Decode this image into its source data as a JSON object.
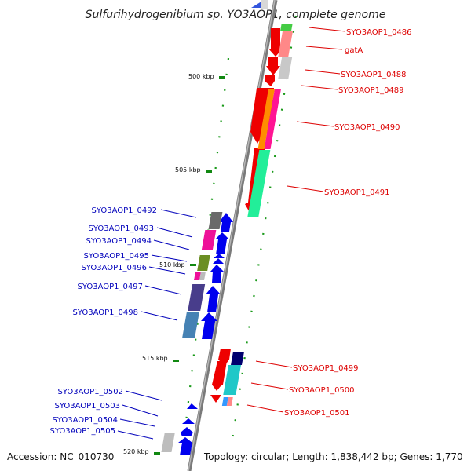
{
  "title": "Sulfurihydrogenibium sp. YO3AOP1, complete genome",
  "footer": {
    "accession": "Accession: NC_010730",
    "topology": "Topology: circular; Length: 1,838,442 bp; Genes: 1,770"
  },
  "scale_ticks": [
    "500 kbp",
    "505 kbp",
    "510 kbp",
    "515 kbp",
    "520 kbp"
  ],
  "colors": {
    "backbone": "#808080",
    "forward_label": "#dd0000",
    "reverse_label": "#0000bb",
    "tick": "#118811",
    "red_gene": "#ee0000",
    "blue_gene": "#0000ee"
  },
  "genes_forward": [
    {
      "label": "SYO3AOP1_0486"
    },
    {
      "label": "gatA"
    },
    {
      "label": "SYO3AOP1_0488"
    },
    {
      "label": "SYO3AOP1_0489"
    },
    {
      "label": "SYO3AOP1_0490"
    },
    {
      "label": "SYO3AOP1_0491"
    },
    {
      "label": "SYO3AOP1_0499"
    },
    {
      "label": "SYO3AOP1_0500"
    },
    {
      "label": "SYO3AOP1_0501"
    }
  ],
  "genes_reverse": [
    {
      "label": "SYO3AOP1_0492"
    },
    {
      "label": "SYO3AOP1_0493"
    },
    {
      "label": "SYO3AOP1_0494"
    },
    {
      "label": "SYO3AOP1_0495"
    },
    {
      "label": "SYO3AOP1_0496"
    },
    {
      "label": "SYO3AOP1_0497"
    },
    {
      "label": "SYO3AOP1_0498"
    },
    {
      "label": "SYO3AOP1_0502"
    },
    {
      "label": "SYO3AOP1_0503"
    },
    {
      "label": "SYO3AOP1_0504"
    },
    {
      "label": "SYO3AOP1_0505"
    }
  ]
}
